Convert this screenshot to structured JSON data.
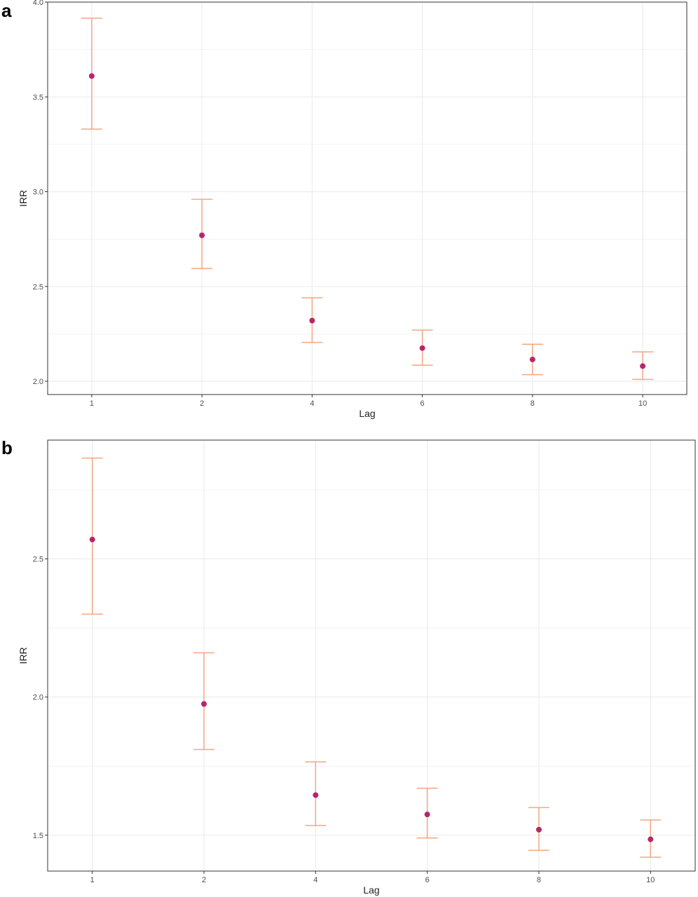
{
  "chart_data": [
    {
      "panel_label": "a",
      "type": "scatter",
      "error_bars": true,
      "xlabel": "Lag",
      "ylabel": "IRR",
      "categories": [
        "1",
        "2",
        "4",
        "6",
        "8",
        "10"
      ],
      "series": [
        {
          "values": [
            3.61,
            2.77,
            2.32,
            2.175,
            2.115,
            2.08
          ],
          "lower": [
            3.33,
            2.595,
            2.205,
            2.085,
            2.035,
            2.01
          ],
          "upper": [
            3.915,
            2.96,
            2.44,
            2.27,
            2.195,
            2.155
          ]
        }
      ],
      "ylim": [
        1.93,
        4.0
      ],
      "yticks": [
        2.0,
        2.5,
        3.0,
        3.5,
        4.0
      ],
      "ytick_labels": [
        "2.0",
        "2.5",
        "3.0",
        "3.5",
        "4.0"
      ],
      "grid": true,
      "colors": {
        "point": "#b5266d",
        "error_bar": "#f4a582",
        "grid": "#ebebeb",
        "border": "#333333"
      }
    },
    {
      "panel_label": "b",
      "type": "scatter",
      "error_bars": true,
      "xlabel": "Lag",
      "ylabel": "IRR",
      "categories": [
        "1",
        "2",
        "4",
        "6",
        "8",
        "10"
      ],
      "series": [
        {
          "values": [
            2.57,
            1.975,
            1.645,
            1.575,
            1.52,
            1.485
          ],
          "lower": [
            2.3,
            1.81,
            1.535,
            1.49,
            1.445,
            1.42
          ],
          "upper": [
            2.865,
            2.16,
            1.765,
            1.67,
            1.6,
            1.555
          ]
        }
      ],
      "ylim": [
        1.37,
        2.93
      ],
      "yticks": [
        1.5,
        2.0,
        2.5
      ],
      "ytick_labels": [
        "1.5",
        "2.0",
        "2.5"
      ],
      "grid": true,
      "colors": {
        "point": "#b5266d",
        "error_bar": "#f4a582",
        "grid": "#ebebeb",
        "border": "#333333"
      }
    }
  ]
}
